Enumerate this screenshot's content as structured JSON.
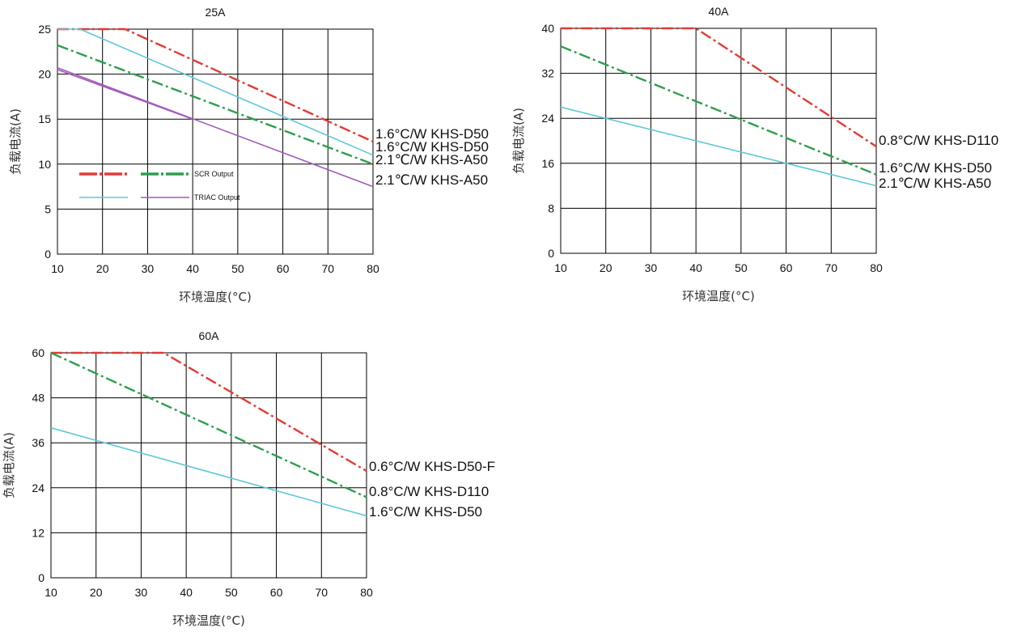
{
  "colors": {
    "scr_red": "#e53935",
    "scr_green": "#2e9e4f",
    "triac_cyan": "#5ec8d8",
    "triac_purple": "#a05cb8",
    "grid": "#000000"
  },
  "chart_data": [
    {
      "type": "line",
      "title": "25A",
      "xlabel": "环境温度(°C)",
      "ylabel": "负载电流(A)",
      "xlim": [
        10,
        80
      ],
      "ylim": [
        0,
        25
      ],
      "xticks": [
        10,
        20,
        30,
        40,
        50,
        60,
        70,
        80
      ],
      "yticks": [
        0,
        5,
        10,
        15,
        20,
        25
      ],
      "grid": true,
      "legend": {
        "position": "left-middle",
        "entries": [
          "SCR Output",
          "TRIAC Output"
        ]
      },
      "series": [
        {
          "name": "1.6°C/W  KHS-D50",
          "style": "dashdot",
          "color": "#e53935",
          "x": [
            10,
            25,
            80
          ],
          "y": [
            25,
            25,
            12.5
          ]
        },
        {
          "name": "1.6°C/W  KHS-D50",
          "style": "solid",
          "color": "#5ec8d8",
          "x": [
            10,
            15,
            80
          ],
          "y": [
            25,
            25,
            11.0
          ]
        },
        {
          "name": "2.1℃/W  KHS-A50",
          "style": "dashdot",
          "color": "#2e9e4f",
          "x": [
            10,
            80
          ],
          "y": [
            23.2,
            10.0
          ]
        },
        {
          "name": "2.1℃/W  KHS-A50",
          "style": "solid",
          "color": "#a05cb8",
          "x": [
            10,
            80
          ],
          "y": [
            20.7,
            7.5
          ]
        },
        {
          "name": "",
          "style": "solid",
          "color": "#a05cb8",
          "x": [
            10,
            40
          ],
          "y": [
            20.5,
            15.0
          ]
        }
      ]
    },
    {
      "type": "line",
      "title": "40A",
      "xlabel": "环境温度(°C)",
      "ylabel": "负载电流(A)",
      "xlim": [
        10,
        80
      ],
      "ylim": [
        0,
        40
      ],
      "xticks": [
        10,
        20,
        30,
        40,
        50,
        60,
        70,
        80
      ],
      "yticks": [
        0,
        8,
        16,
        24,
        32,
        40
      ],
      "grid": true,
      "series": [
        {
          "name": "0.8°C/W  KHS-D110",
          "style": "dashdot",
          "color": "#e53935",
          "x": [
            10,
            40,
            80
          ],
          "y": [
            40,
            40,
            19.0
          ]
        },
        {
          "name": "1.6°C/W  KHS-D50",
          "style": "dashdot",
          "color": "#2e9e4f",
          "x": [
            10,
            80
          ],
          "y": [
            36.8,
            14.0
          ]
        },
        {
          "name": "2.1℃/W  KHS-A50",
          "style": "solid",
          "color": "#5ec8d8",
          "x": [
            10,
            80
          ],
          "y": [
            26.0,
            12.0
          ]
        }
      ]
    },
    {
      "type": "line",
      "title": "60A",
      "xlabel": "环境温度(°C)",
      "ylabel": "负载电流(A)",
      "xlim": [
        10,
        80
      ],
      "ylim": [
        0,
        60
      ],
      "xticks": [
        10,
        20,
        30,
        40,
        50,
        60,
        70,
        80
      ],
      "yticks": [
        0,
        12,
        24,
        36,
        48,
        60
      ],
      "grid": true,
      "series": [
        {
          "name": "0.6°C/W  KHS-D50-F",
          "style": "dashdot",
          "color": "#e53935",
          "x": [
            10,
            35,
            80
          ],
          "y": [
            60,
            60,
            28.5
          ]
        },
        {
          "name": "0.8°C/W  KHS-D110",
          "style": "dashdot",
          "color": "#2e9e4f",
          "x": [
            10,
            80
          ],
          "y": [
            60,
            21.5
          ]
        },
        {
          "name": "1.6°C/W  KHS-D50",
          "style": "solid",
          "color": "#5ec8d8",
          "x": [
            10,
            80
          ],
          "y": [
            40,
            16.5
          ]
        }
      ]
    }
  ]
}
